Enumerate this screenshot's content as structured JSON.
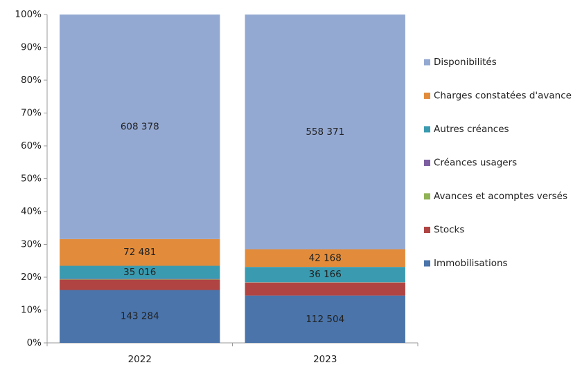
{
  "chart_data": {
    "type": "stacked_bar_100",
    "categories": [
      "2022",
      "2023"
    ],
    "ylim": [
      0,
      100
    ],
    "yticks": [
      {
        "value": 0,
        "label": "0%"
      },
      {
        "value": 10,
        "label": "10%"
      },
      {
        "value": 20,
        "label": "20%"
      },
      {
        "value": 30,
        "label": "30%"
      },
      {
        "value": 40,
        "label": "40%"
      },
      {
        "value": 50,
        "label": "50%"
      },
      {
        "value": 60,
        "label": "60%"
      },
      {
        "value": 70,
        "label": "70%"
      },
      {
        "value": 80,
        "label": "80%"
      },
      {
        "value": 90,
        "label": "90%"
      },
      {
        "value": 100,
        "label": "100%"
      }
    ],
    "grid": false,
    "legend": "right",
    "series": [
      {
        "name": "Immobilisations",
        "color": "#4a74aa",
        "values": [
          143284,
          112504
        ],
        "value_labels": [
          "143 284",
          "112 504"
        ]
      },
      {
        "name": "Stocks",
        "color": "#b04442",
        "values": [
          28000,
          31000
        ],
        "value_labels": [
          null,
          null
        ]
      },
      {
        "name": "Avances et acomptes versés",
        "color": "#8fb355",
        "values": [
          1000,
          500
        ],
        "value_labels": [
          null,
          null
        ]
      },
      {
        "name": "Créances usagers",
        "color": "#7d5ea0",
        "values": [
          1500,
          500
        ],
        "value_labels": [
          null,
          null
        ]
      },
      {
        "name": "Autres créances",
        "color": "#3a9bb0",
        "values": [
          35016,
          36166
        ],
        "value_labels": [
          "35 016",
          "36 166"
        ]
      },
      {
        "name": "Charges constatées d'avance",
        "color": "#e28c3b",
        "values": [
          72481,
          42168
        ],
        "value_labels": [
          "72 481",
          "42 168"
        ]
      },
      {
        "name": "Disponibilités",
        "color": "#94a9d2",
        "values": [
          608378,
          558371
        ],
        "value_labels": [
          "608 378",
          "558 371"
        ]
      }
    ]
  }
}
